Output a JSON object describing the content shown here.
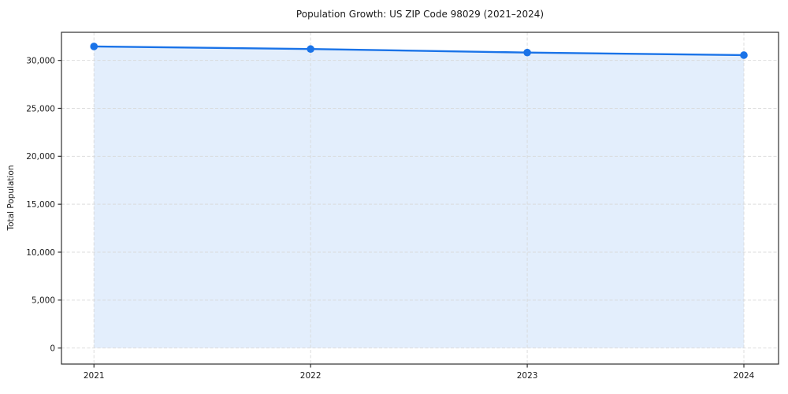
{
  "page": {
    "title": "Population Growth: US ZIP Code 98029 (2021–2024)"
  },
  "chart_data": {
    "type": "line",
    "title": "Population Growth: US ZIP Code 98029 (2021–2024)",
    "xlabel": "",
    "ylabel": "Total Population",
    "x": [
      2021,
      2022,
      2023,
      2024
    ],
    "xticklabels": [
      "2021",
      "2022",
      "2023",
      "2024"
    ],
    "series": [
      {
        "name": "Total Population",
        "values": [
          31455,
          31185,
          30820,
          30550
        ]
      }
    ],
    "area_fill": true,
    "fill_baseline": 0,
    "yticks": [
      0,
      5000,
      10000,
      15000,
      20000,
      25000,
      30000
    ],
    "yticklabels": [
      "0",
      "5,000",
      "10,000",
      "15,000",
      "20,000",
      "25,000",
      "30,000"
    ],
    "xlim": [
      2020.85,
      2024.16
    ],
    "ylim": [
      -1670,
      32930
    ],
    "grid": true,
    "legend": "none",
    "colors": {
      "line": "#1a73e8",
      "marker": "#1a73e8",
      "fill": "rgba(26,115,232,0.12)",
      "grid": "#d8d8d8",
      "spine": "#2f2f2f",
      "tick_text": "#1a1a1a"
    }
  }
}
